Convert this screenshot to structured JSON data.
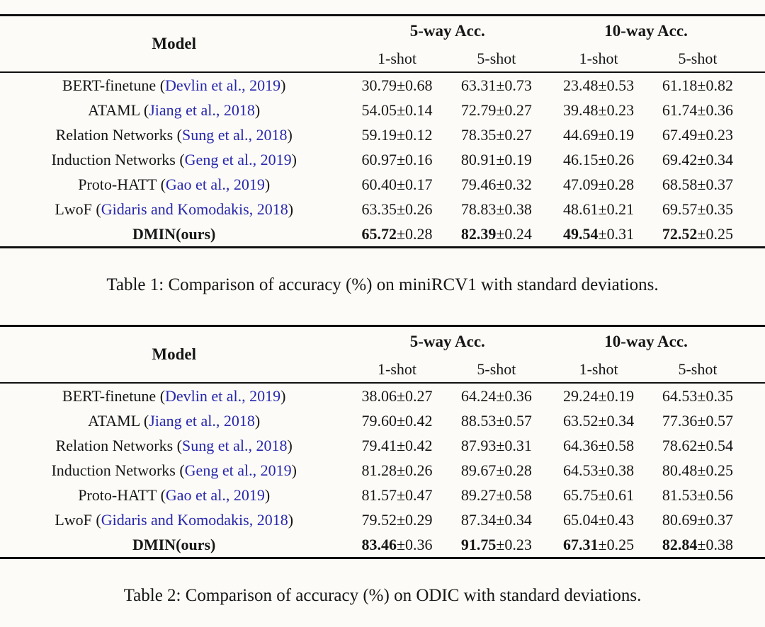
{
  "colors": {
    "text": "#161616",
    "citation_blue": "#2727ae",
    "rule_black": "#101010"
  },
  "tables": [
    {
      "name": "table-1",
      "caption": "Table 1: Comparison of accuracy (%) on miniRCV1 with standard deviations.",
      "header": {
        "model": "Model",
        "group_5way": "5-way Acc.",
        "group_10way": "10-way Acc.",
        "subcolumns": [
          "1-shot",
          "5-shot",
          "1-shot",
          "5-shot"
        ]
      },
      "rows": [
        {
          "model": "BERT-finetune",
          "citation": "Devlin et al., 2019",
          "bold": false,
          "cells": [
            [
              "30.79",
              "0.68"
            ],
            [
              "63.31",
              "0.73"
            ],
            [
              "23.48",
              "0.53"
            ],
            [
              "61.18",
              "0.82"
            ]
          ]
        },
        {
          "model": "ATAML",
          "citation": "Jiang et al., 2018",
          "bold": false,
          "cells": [
            [
              "54.05",
              "0.14"
            ],
            [
              "72.79",
              "0.27"
            ],
            [
              "39.48",
              "0.23"
            ],
            [
              "61.74",
              "0.36"
            ]
          ]
        },
        {
          "model": "Relation Networks",
          "citation": "Sung et al., 2018",
          "bold": false,
          "cells": [
            [
              "59.19",
              "0.12"
            ],
            [
              "78.35",
              "0.27"
            ],
            [
              "44.69",
              "0.19"
            ],
            [
              "67.49",
              "0.23"
            ]
          ]
        },
        {
          "model": "Induction Networks",
          "citation": "Geng et al., 2019",
          "bold": false,
          "cells": [
            [
              "60.97",
              "0.16"
            ],
            [
              "80.91",
              "0.19"
            ],
            [
              "46.15",
              "0.26"
            ],
            [
              "69.42",
              "0.34"
            ]
          ]
        },
        {
          "model": "Proto-HATT",
          "citation": "Gao et al., 2019",
          "bold": false,
          "cells": [
            [
              "60.40",
              "0.17"
            ],
            [
              "79.46",
              "0.32"
            ],
            [
              "47.09",
              "0.28"
            ],
            [
              "68.58",
              "0.37"
            ]
          ]
        },
        {
          "model": "LwoF",
          "citation": "Gidaris and Komodakis, 2018",
          "bold": false,
          "cells": [
            [
              "63.35",
              "0.26"
            ],
            [
              "78.83",
              "0.38"
            ],
            [
              "48.61",
              "0.21"
            ],
            [
              "69.57",
              "0.35"
            ]
          ]
        },
        {
          "model": "DMIN(ours)",
          "citation": null,
          "bold": true,
          "cells": [
            [
              "65.72",
              "0.28"
            ],
            [
              "82.39",
              "0.24"
            ],
            [
              "49.54",
              "0.31"
            ],
            [
              "72.52",
              "0.25"
            ]
          ]
        }
      ]
    },
    {
      "name": "table-2",
      "caption": "Table 2: Comparison of accuracy (%) on ODIC with standard deviations.",
      "header": {
        "model": "Model",
        "group_5way": "5-way Acc.",
        "group_10way": "10-way Acc.",
        "subcolumns": [
          "1-shot",
          "5-shot",
          "1-shot",
          "5-shot"
        ]
      },
      "rows": [
        {
          "model": "BERT-finetune",
          "citation": "Devlin et al., 2019",
          "bold": false,
          "cells": [
            [
              "38.06",
              "0.27"
            ],
            [
              "64.24",
              "0.36"
            ],
            [
              "29.24",
              "0.19"
            ],
            [
              "64.53",
              "0.35"
            ]
          ]
        },
        {
          "model": "ATAML",
          "citation": "Jiang et al., 2018",
          "bold": false,
          "cells": [
            [
              "79.60",
              "0.42"
            ],
            [
              "88.53",
              "0.57"
            ],
            [
              "63.52",
              "0.34"
            ],
            [
              "77.36",
              "0.57"
            ]
          ]
        },
        {
          "model": "Relation Networks",
          "citation": "Sung et al., 2018",
          "bold": false,
          "cells": [
            [
              "79.41",
              "0.42"
            ],
            [
              "87.93",
              "0.31"
            ],
            [
              "64.36",
              "0.58"
            ],
            [
              "78.62",
              "0.54"
            ]
          ]
        },
        {
          "model": "Induction Networks",
          "citation": "Geng et al., 2019",
          "bold": false,
          "cells": [
            [
              "81.28",
              "0.26"
            ],
            [
              "89.67",
              "0.28"
            ],
            [
              "64.53",
              "0.38"
            ],
            [
              "80.48",
              "0.25"
            ]
          ]
        },
        {
          "model": "Proto-HATT",
          "citation": "Gao et al., 2019",
          "bold": false,
          "cells": [
            [
              "81.57",
              "0.47"
            ],
            [
              "89.27",
              "0.58"
            ],
            [
              "65.75",
              "0.61"
            ],
            [
              "81.53",
              "0.56"
            ]
          ]
        },
        {
          "model": "LwoF",
          "citation": "Gidaris and Komodakis, 2018",
          "bold": false,
          "cells": [
            [
              "79.52",
              "0.29"
            ],
            [
              "87.34",
              "0.34"
            ],
            [
              "65.04",
              "0.43"
            ],
            [
              "80.69",
              "0.37"
            ]
          ]
        },
        {
          "model": "DMIN(ours)",
          "citation": null,
          "bold": true,
          "cells": [
            [
              "83.46",
              "0.36"
            ],
            [
              "91.75",
              "0.23"
            ],
            [
              "67.31",
              "0.25"
            ],
            [
              "82.84",
              "0.38"
            ]
          ]
        }
      ]
    }
  ]
}
